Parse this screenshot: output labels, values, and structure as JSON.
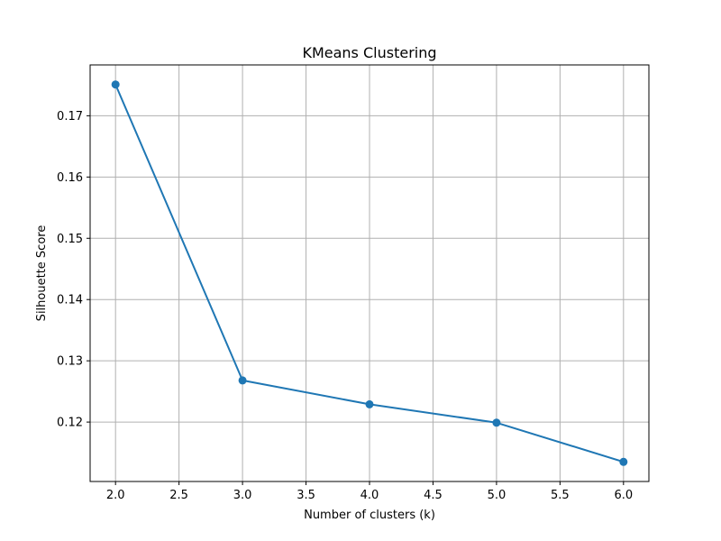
{
  "chart_data": {
    "type": "line",
    "title": "KMeans Clustering",
    "xlabel": "Number of clusters (k)",
    "ylabel": "Silhouette Score",
    "x": [
      2,
      3,
      4,
      5,
      6
    ],
    "series": [
      {
        "values": [
          0.1751,
          0.1268,
          0.1229,
          0.1199,
          0.1135
        ],
        "color": "#1f77b4",
        "marker": "circle"
      }
    ],
    "xlim": [
      1.8,
      6.2
    ],
    "ylim": [
      0.1103,
      0.1783
    ],
    "xticks": [
      2.0,
      2.5,
      3.0,
      3.5,
      4.0,
      4.5,
      5.0,
      5.5,
      6.0
    ],
    "xtick_labels": [
      "2.0",
      "2.5",
      "3.0",
      "3.5",
      "4.0",
      "4.5",
      "5.0",
      "5.5",
      "6.0"
    ],
    "yticks": [
      0.12,
      0.13,
      0.14,
      0.15,
      0.16,
      0.17
    ],
    "ytick_labels": [
      "0.12",
      "0.13",
      "0.14",
      "0.15",
      "0.16",
      "0.17"
    ],
    "grid": true,
    "grid_color": "#b0b0b0"
  }
}
